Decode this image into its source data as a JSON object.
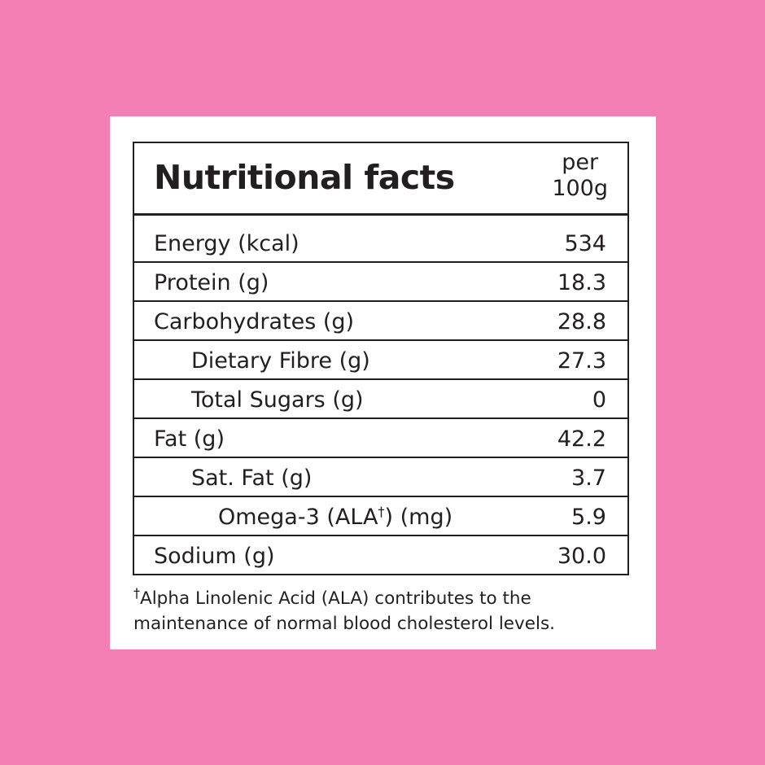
{
  "colors": {
    "background": "#F47FB4",
    "panel": "#FFFFFF",
    "text": "#231F20"
  },
  "header": {
    "title": "Nutritional facts",
    "per_line1": "per",
    "per_line2": "100g"
  },
  "rows": [
    {
      "label": "Energy (kcal)",
      "value": "534",
      "indent": 0
    },
    {
      "label": "Protein (g)",
      "value": "18.3",
      "indent": 0
    },
    {
      "label": "Carbohydrates (g)",
      "value": "28.8",
      "indent": 0
    },
    {
      "label": "Dietary Fibre (g)",
      "value": "27.3",
      "indent": 1
    },
    {
      "label": "Total Sugars (g)",
      "value": "0",
      "indent": 1
    },
    {
      "label": "Fat (g)",
      "value": "42.2",
      "indent": 0
    },
    {
      "label": "Sat. Fat (g)",
      "value": "3.7",
      "indent": 1
    },
    {
      "label_prefix": "Omega-3 (ALA",
      "label_sup": "†",
      "label_suffix": ") (mg)",
      "value": "5.9",
      "indent": 2
    },
    {
      "label": "Sodium (g)",
      "value": "30.0",
      "indent": 0
    }
  ],
  "footnote": {
    "mark": "†",
    "text": "Alpha Linolenic Acid (ALA) contributes to the maintenance of normal blood cholesterol levels."
  }
}
